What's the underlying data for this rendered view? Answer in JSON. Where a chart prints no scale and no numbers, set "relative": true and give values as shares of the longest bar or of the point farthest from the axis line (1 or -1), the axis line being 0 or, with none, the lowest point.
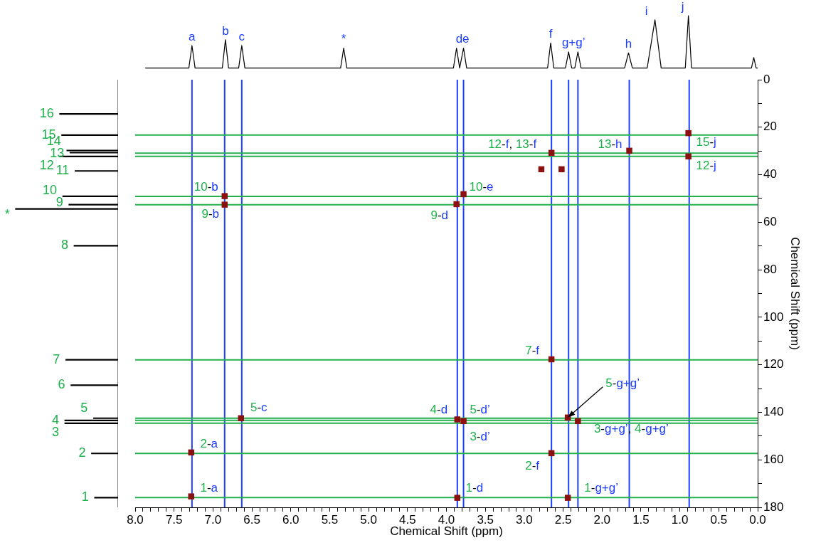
{
  "chart_data": [
    {
      "type": "line",
      "relative": true,
      "color": "#000000",
      "tick_labels": false,
      "xlim": [
        8,
        0
      ],
      "x": [
        7.87,
        7.31,
        7.27,
        7.23,
        6.88,
        6.84,
        6.8,
        6.67,
        6.63,
        6.59,
        5.36,
        5.32,
        5.28,
        3.91,
        3.87,
        3.83,
        3.78,
        3.74,
        2.7,
        2.66,
        2.62,
        2.47,
        2.43,
        2.39,
        2.35,
        2.31,
        2.27,
        1.71,
        1.66,
        1.61,
        1.42,
        1.32,
        1.24,
        0.93,
        0.89,
        0.85,
        0.08,
        0.05,
        0.02,
        0.0
      ],
      "values": [
        0,
        0,
        0.43,
        0,
        0,
        0.54,
        0,
        0,
        0.43,
        0,
        0,
        0.38,
        0,
        0,
        0.38,
        0,
        0.38,
        0,
        0,
        0.48,
        0,
        0,
        0.31,
        0,
        0,
        0.31,
        0,
        0,
        0.29,
        0,
        0,
        0.92,
        0,
        0,
        1,
        0,
        0,
        0.2,
        0,
        0
      ],
      "annotations": [
        {
          "text": "a",
          "x": 7.27,
          "y": 0.43
        },
        {
          "text": "b",
          "x": 6.84,
          "y": 0.54
        },
        {
          "text": "c",
          "x": 6.63,
          "y": 0.43
        },
        {
          "text": "*",
          "x": 5.32,
          "y": 0.38
        },
        {
          "text": "de",
          "x": 3.83,
          "y": 0.38
        },
        {
          "text": "f",
          "x": 2.66,
          "y": 0.48
        },
        {
          "text": "g+g’",
          "x": 2.43,
          "y": 0.31
        },
        {
          "text": "h",
          "x": 1.66,
          "y": 0.29
        },
        {
          "text": "i",
          "x": 1.32,
          "y": 0.92
        },
        {
          "text": "j",
          "x": 0.89,
          "y": 1
        }
      ]
    },
    {
      "type": "bar",
      "orientation": "horizontal",
      "relative": true,
      "color": "#000000",
      "tick_labels": false,
      "ylim": [
        180,
        0
      ],
      "x": [
        14.4,
        23.3,
        29.8,
        30.7,
        32.3,
        38.4,
        49.1,
        52.6,
        54.4,
        69.9,
        117.9,
        128.6,
        142.5,
        143.4,
        144.6,
        157.3,
        175.9
      ],
      "values": [
        0.57,
        0.55,
        0.5,
        0.47,
        0.57,
        0.42,
        0.54,
        0.48,
        1,
        0.43,
        0.51,
        0.46,
        0.24,
        0.52,
        0.52,
        0.26,
        0.23
      ],
      "annotations": [
        {
          "text": "16",
          "x": 0.57,
          "y": 14.4
        },
        {
          "text": "15",
          "x": 0.55,
          "y": 23.3
        },
        {
          "text": "14",
          "x": 0.5,
          "y": 29.8
        },
        {
          "text": "13",
          "x": 0.47,
          "y": 30.7
        },
        {
          "text": "12",
          "x": 0.57,
          "y": 32.3
        },
        {
          "text": "11",
          "x": 0.42,
          "y": 38.4
        },
        {
          "text": "10",
          "x": 0.54,
          "y": 49.1
        },
        {
          "text": "9",
          "x": 0.48,
          "y": 52.6
        },
        {
          "text": "*",
          "x": 1,
          "y": 54.4
        },
        {
          "text": "8",
          "x": 0.43,
          "y": 69.9
        },
        {
          "text": "7",
          "x": 0.51,
          "y": 117.9
        },
        {
          "text": "6",
          "x": 0.46,
          "y": 128.6
        },
        {
          "text": "5",
          "x": 0.24,
          "y": 142.5
        },
        {
          "text": "4",
          "x": 0.52,
          "y": 143.4
        },
        {
          "text": "3",
          "x": 0.52,
          "y": 144.6
        },
        {
          "text": "2",
          "x": 0.26,
          "y": 157.3
        },
        {
          "text": "1",
          "x": 0.23,
          "y": 175.9
        }
      ]
    },
    {
      "type": "scatter",
      "color": "#8b1010",
      "marker": "square",
      "xlabel": "Chemical Shift (ppm)",
      "ylabel": "Chemical Shift (ppm)",
      "xlim": [
        8,
        0
      ],
      "ylim": [
        180,
        0
      ],
      "x": [
        0.89,
        0.89,
        2.65,
        2.78,
        2.52,
        1.65,
        3.78,
        3.87,
        6.85,
        6.85,
        6.64,
        7.28,
        7.28,
        2.65,
        2.65,
        2.44,
        2.31,
        3.86,
        3.78,
        3.86,
        2.44
      ],
      "values": [
        22.5,
        32.3,
        30.8,
        37.7,
        37.7,
        29.9,
        48.2,
        52.4,
        49,
        52.6,
        142.5,
        156.9,
        175.4,
        117.7,
        157.2,
        142.2,
        143.7,
        143,
        143.7,
        176,
        176
      ],
      "ref_lines": [
        {
          "axis": "x",
          "value": 7.27,
          "color": "#1f3fff"
        },
        {
          "axis": "x",
          "value": 6.85,
          "color": "#1f3fff"
        },
        {
          "axis": "x",
          "value": 6.63,
          "color": "#1f3fff"
        },
        {
          "axis": "x",
          "value": 3.86,
          "color": "#1f3fff"
        },
        {
          "axis": "x",
          "value": 3.78,
          "color": "#1f3fff"
        },
        {
          "axis": "x",
          "value": 2.65,
          "color": "#1f3fff"
        },
        {
          "axis": "x",
          "value": 2.43,
          "color": "#1f3fff"
        },
        {
          "axis": "x",
          "value": 2.31,
          "color": "#1f3fff"
        },
        {
          "axis": "x",
          "value": 1.65,
          "color": "#1f3fff"
        },
        {
          "axis": "x",
          "value": 0.88,
          "color": "#1f3fff"
        },
        {
          "axis": "y",
          "value": 23.3,
          "color": "#22b14c"
        },
        {
          "axis": "y",
          "value": 30.9,
          "color": "#22b14c"
        },
        {
          "axis": "y",
          "value": 32.3,
          "color": "#22b14c"
        },
        {
          "axis": "y",
          "value": 49.1,
          "color": "#22b14c"
        },
        {
          "axis": "y",
          "value": 52.6,
          "color": "#22b14c"
        },
        {
          "axis": "y",
          "value": 117.9,
          "color": "#22b14c"
        },
        {
          "axis": "y",
          "value": 142.5,
          "color": "#22b14c"
        },
        {
          "axis": "y",
          "value": 143.4,
          "color": "#22b14c"
        },
        {
          "axis": "y",
          "value": 144.6,
          "color": "#22b14c"
        },
        {
          "axis": "y",
          "value": 157.3,
          "color": "#22b14c"
        },
        {
          "axis": "y",
          "value": 175.9,
          "color": "#22b14c"
        }
      ],
      "annotations": [
        {
          "text": "15-j",
          "x": 0.89,
          "y": 22.5
        },
        {
          "text": "12-j",
          "x": 0.89,
          "y": 32.3
        },
        {
          "text": "12-f, 13-f",
          "x": 2.65,
          "y": 30.8
        },
        {
          "text": "13-h",
          "x": 1.65,
          "y": 29.9
        },
        {
          "text": "10-e",
          "x": 3.78,
          "y": 48.2
        },
        {
          "text": "9-d",
          "x": 3.87,
          "y": 52.4
        },
        {
          "text": "10-b",
          "x": 6.85,
          "y": 49
        },
        {
          "text": "9-b",
          "x": 6.85,
          "y": 52.6
        },
        {
          "text": "5-c",
          "x": 6.64,
          "y": 142.5
        },
        {
          "text": "2-a",
          "x": 7.28,
          "y": 156.9
        },
        {
          "text": "1-a",
          "x": 7.28,
          "y": 175.4
        },
        {
          "text": "7-f",
          "x": 2.65,
          "y": 117.7
        },
        {
          "text": "5-g+g’",
          "x": 2.44,
          "y": 142.2
        },
        {
          "text": "4-d",
          "x": 3.86,
          "y": 143
        },
        {
          "text": "5-d’",
          "x": 3.78,
          "y": 143.7
        },
        {
          "text": "3-d’",
          "x": 3.78,
          "y": 143.7
        },
        {
          "text": "3-g+g’, 4-g+g’",
          "x": 2.31,
          "y": 143.7
        },
        {
          "text": "2-f",
          "x": 2.65,
          "y": 157.2
        },
        {
          "text": "1-d",
          "x": 3.86,
          "y": 176
        },
        {
          "text": "1-g+g’",
          "x": 2.44,
          "y": 176
        }
      ],
      "xticks": [
        {
          "value": 8,
          "label": "8.0"
        },
        {
          "value": 7.9,
          "label": null
        },
        {
          "value": 7.8,
          "label": null
        },
        {
          "value": 7.7,
          "label": null
        },
        {
          "value": 7.6,
          "label": null
        },
        {
          "value": 7.5,
          "label": "7.5"
        },
        {
          "value": 7.4,
          "label": null
        },
        {
          "value": 7.3,
          "label": null
        },
        {
          "value": 7.2,
          "label": null
        },
        {
          "value": 7.1,
          "label": null
        },
        {
          "value": 7,
          "label": "7.0"
        },
        {
          "value": 6.9,
          "label": null
        },
        {
          "value": 6.8,
          "label": null
        },
        {
          "value": 6.7,
          "label": null
        },
        {
          "value": 6.6,
          "label": null
        },
        {
          "value": 6.5,
          "label": "6.5"
        },
        {
          "value": 6.4,
          "label": null
        },
        {
          "value": 6.3,
          "label": null
        },
        {
          "value": 6.2,
          "label": null
        },
        {
          "value": 6.1,
          "label": null
        },
        {
          "value": 6,
          "label": "6.0"
        },
        {
          "value": 5.9,
          "label": null
        },
        {
          "value": 5.8,
          "label": null
        },
        {
          "value": 5.7,
          "label": null
        },
        {
          "value": 5.6,
          "label": null
        },
        {
          "value": 5.5,
          "label": "5.5"
        },
        {
          "value": 5.4,
          "label": null
        },
        {
          "value": 5.3,
          "label": null
        },
        {
          "value": 5.2,
          "label": null
        },
        {
          "value": 5.1,
          "label": null
        },
        {
          "value": 5,
          "label": "5.0"
        },
        {
          "value": 4.9,
          "label": null
        },
        {
          "value": 4.8,
          "label": null
        },
        {
          "value": 4.7,
          "label": null
        },
        {
          "value": 4.6,
          "label": null
        },
        {
          "value": 4.5,
          "label": "4.5"
        },
        {
          "value": 4.4,
          "label": null
        },
        {
          "value": 4.3,
          "label": null
        },
        {
          "value": 4.2,
          "label": null
        },
        {
          "value": 4.1,
          "label": null
        },
        {
          "value": 4,
          "label": "4.0"
        },
        {
          "value": 3.9,
          "label": null
        },
        {
          "value": 3.8,
          "label": null
        },
        {
          "value": 3.7,
          "label": null
        },
        {
          "value": 3.6,
          "label": null
        },
        {
          "value": 3.5,
          "label": "3.5"
        },
        {
          "value": 3.4,
          "label": null
        },
        {
          "value": 3.3,
          "label": null
        },
        {
          "value": 3.2,
          "label": null
        },
        {
          "value": 3.1,
          "label": null
        },
        {
          "value": 3,
          "label": "3.0"
        },
        {
          "value": 2.9,
          "label": null
        },
        {
          "value": 2.8,
          "label": null
        },
        {
          "value": 2.7,
          "label": null
        },
        {
          "value": 2.6,
          "label": null
        },
        {
          "value": 2.5,
          "label": "2.5"
        },
        {
          "value": 2.4,
          "label": null
        },
        {
          "value": 2.3,
          "label": null
        },
        {
          "value": 2.2,
          "label": null
        },
        {
          "value": 2.1,
          "label": null
        },
        {
          "value": 2,
          "label": "2.0"
        },
        {
          "value": 1.9,
          "label": null
        },
        {
          "value": 1.8,
          "label": null
        },
        {
          "value": 1.7,
          "label": null
        },
        {
          "value": 1.6,
          "label": null
        },
        {
          "value": 1.5,
          "label": "1.5"
        },
        {
          "value": 1.4,
          "label": null
        },
        {
          "value": 1.3,
          "label": null
        },
        {
          "value": 1.2,
          "label": null
        },
        {
          "value": 1.1,
          "label": null
        },
        {
          "value": 1,
          "label": "1.0"
        },
        {
          "value": 0.9,
          "label": null
        },
        {
          "value": 0.8,
          "label": null
        },
        {
          "value": 0.7,
          "label": null
        },
        {
          "value": 0.6,
          "label": null
        },
        {
          "value": 0.5,
          "label": "0.5"
        },
        {
          "value": 0.4,
          "label": null
        },
        {
          "value": 0.3,
          "label": null
        },
        {
          "value": 0.2,
          "label": null
        },
        {
          "value": 0.1,
          "label": null
        },
        {
          "value": 0,
          "label": "0.0"
        }
      ],
      "yticks": [
        0,
        {
          "value": 10,
          "label": null
        },
        20,
        {
          "value": 30,
          "label": null
        },
        40,
        {
          "value": 50,
          "label": null
        },
        60,
        {
          "value": 70,
          "label": null
        },
        80,
        {
          "value": 90,
          "label": null
        },
        100,
        {
          "value": 110,
          "label": null
        },
        120,
        {
          "value": 130,
          "label": null
        },
        140,
        {
          "value": 150,
          "label": null
        },
        160,
        {
          "value": 170,
          "label": null
        },
        180
      ]
    }
  ]
}
